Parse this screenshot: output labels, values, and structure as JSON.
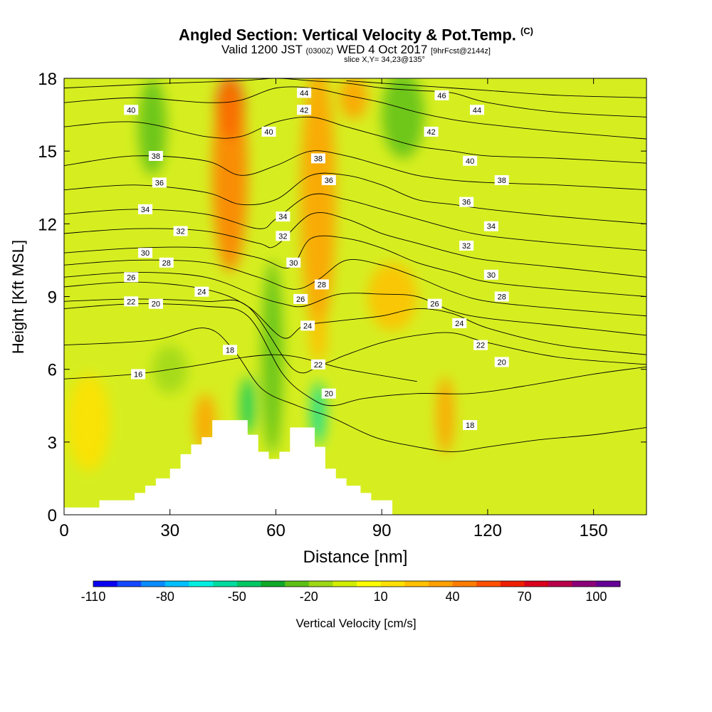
{
  "header": {
    "title": "Angled Section: Vertical Velocity & Pot.Temp.",
    "title_mark": "(C)",
    "subtitle_pre": "Valid 1200 JST",
    "subtitle_z": "(0300Z)",
    "subtitle_date": "WED 4 Oct 2017",
    "subtitle_fcst": "[9hrFcst@2144z]",
    "slice": "slice X,Y= 34,23@135°"
  },
  "chart_data": {
    "type": "heatmap",
    "title": "Angled Section: Vertical Velocity & Pot.Temp.",
    "xlabel": "Distance [nm]",
    "ylabel": "Height [Kft MSL]",
    "xlim": [
      0,
      165
    ],
    "ylim": [
      0,
      18
    ],
    "x_ticks": [
      0,
      30,
      60,
      90,
      120,
      150
    ],
    "y_ticks": [
      0,
      3,
      6,
      9,
      12,
      15,
      18
    ],
    "colorbar": {
      "label": "Vertical Velocity [cm/s]",
      "range": [
        -110,
        110
      ],
      "ticks": [
        -110,
        -80,
        -50,
        -20,
        10,
        40,
        70,
        100
      ],
      "colors": [
        "#0a00f0",
        "#1448ff",
        "#0a8cff",
        "#00c0ff",
        "#00f0e0",
        "#00dca0",
        "#00c864",
        "#10a828",
        "#5cc014",
        "#9ed814",
        "#d2ee00",
        "#ffff00",
        "#ffe000",
        "#ffc000",
        "#ffa000",
        "#ff7c00",
        "#ff5000",
        "#f01e00",
        "#d8001e",
        "#b8004a",
        "#8c0078",
        "#640096"
      ]
    },
    "terrain": [
      [
        0,
        0.3
      ],
      [
        10,
        0.3
      ],
      [
        10,
        0.6
      ],
      [
        20,
        0.6
      ],
      [
        20,
        0.9
      ],
      [
        23,
        0.9
      ],
      [
        23,
        1.2
      ],
      [
        26,
        1.2
      ],
      [
        26,
        1.5
      ],
      [
        30,
        1.5
      ],
      [
        30,
        1.9
      ],
      [
        33,
        1.9
      ],
      [
        33,
        2.5
      ],
      [
        36,
        2.5
      ],
      [
        36,
        2.9
      ],
      [
        39,
        2.9
      ],
      [
        39,
        3.2
      ],
      [
        42,
        3.2
      ],
      [
        42,
        3.9
      ],
      [
        52,
        3.9
      ],
      [
        52,
        3.3
      ],
      [
        55,
        3.3
      ],
      [
        55,
        2.6
      ],
      [
        58,
        2.6
      ],
      [
        58,
        2.3
      ],
      [
        61,
        2.3
      ],
      [
        61,
        2.6
      ],
      [
        64,
        2.6
      ],
      [
        64,
        3.6
      ],
      [
        71,
        3.6
      ],
      [
        71,
        2.8
      ],
      [
        74,
        2.8
      ],
      [
        74,
        1.9
      ],
      [
        77,
        1.9
      ],
      [
        77,
        1.5
      ],
      [
        80,
        1.5
      ],
      [
        80,
        1.2
      ],
      [
        84,
        1.2
      ],
      [
        84,
        0.9
      ],
      [
        87,
        0.9
      ],
      [
        87,
        0.6
      ],
      [
        93,
        0.6
      ],
      [
        93,
        0
      ]
    ],
    "velocity_cells": [
      {
        "cx": 47,
        "cy": 16.8,
        "rx": 4,
        "ry": 1.3,
        "v": 75
      },
      {
        "cx": 47,
        "cy": 14,
        "rx": 5,
        "ry": 4,
        "v": 45
      },
      {
        "cx": 72,
        "cy": 13,
        "rx": 5,
        "ry": 5.5,
        "v": 40
      },
      {
        "cx": 82,
        "cy": 17.2,
        "rx": 4,
        "ry": 0.9,
        "v": 40
      },
      {
        "cx": 93,
        "cy": 9,
        "rx": 7,
        "ry": 1.4,
        "v": 25
      },
      {
        "cx": 108,
        "cy": 4.1,
        "rx": 2.5,
        "ry": 1.6,
        "v": 35
      },
      {
        "cx": 72,
        "cy": 7.3,
        "rx": 2.5,
        "ry": 1,
        "v": 25
      },
      {
        "cx": 7,
        "cy": 3.8,
        "rx": 6,
        "ry": 2,
        "v": 15
      },
      {
        "cx": 40,
        "cy": 3.8,
        "rx": 3,
        "ry": 1.2,
        "v": 30
      },
      {
        "cx": 25,
        "cy": 16,
        "rx": 4,
        "ry": 2,
        "v": -30
      },
      {
        "cx": 96,
        "cy": 16.5,
        "rx": 6,
        "ry": 1.8,
        "v": -30
      },
      {
        "cx": 59,
        "cy": 6.5,
        "rx": 3,
        "ry": 4,
        "v": -25
      },
      {
        "cx": 52,
        "cy": 4.5,
        "rx": 2,
        "ry": 1.2,
        "v": -45
      },
      {
        "cx": 72,
        "cy": 4.2,
        "rx": 2,
        "ry": 1.3,
        "v": -55
      },
      {
        "cx": 30,
        "cy": 6,
        "rx": 5,
        "ry": 1,
        "v": -15
      }
    ],
    "series": [
      {
        "name": "16",
        "x": [
          0,
          20,
          35,
          60,
          80,
          100
        ],
        "y": [
          5.6,
          5.8,
          6.1,
          6.6,
          6.0,
          5.5
        ]
      },
      {
        "name": "18",
        "x": [
          0,
          25,
          40,
          48,
          56,
          66,
          76,
          88,
          100,
          110,
          120,
          135,
          150,
          165
        ],
        "y": [
          7.0,
          7.2,
          7.7,
          6.8,
          5.2,
          4.5,
          4.0,
          3.2,
          2.8,
          2.6,
          2.8,
          3.1,
          3.3,
          3.6
        ]
      },
      {
        "name": "20",
        "x": [
          0,
          20,
          40,
          52,
          62,
          70,
          76,
          85,
          100,
          115,
          130,
          150,
          165
        ],
        "y": [
          8.5,
          8.7,
          8.6,
          8.2,
          5.8,
          4.8,
          4.5,
          4.8,
          5.0,
          5.0,
          5.3,
          5.8,
          6.1
        ]
      },
      {
        "name": "22",
        "x": [
          0,
          20,
          40,
          52,
          65,
          73,
          80,
          90,
          100,
          110,
          120,
          140,
          165
        ],
        "y": [
          8.8,
          8.9,
          8.8,
          8.6,
          6.0,
          6.2,
          6.6,
          7.1,
          7.4,
          7.5,
          7.1,
          6.5,
          6.2
        ]
      },
      {
        "name": "24",
        "x": [
          0,
          20,
          40,
          52,
          62,
          68,
          78,
          90,
          100,
          110,
          120,
          140,
          165
        ],
        "y": [
          9.4,
          9.6,
          9.3,
          8.6,
          7.3,
          7.8,
          8.0,
          8.2,
          8.5,
          8.3,
          7.7,
          7.0,
          6.6
        ]
      },
      {
        "name": "26",
        "x": [
          0,
          20,
          40,
          55,
          62,
          68,
          78,
          90,
          100,
          110,
          120,
          140,
          165
        ],
        "y": [
          9.8,
          10.0,
          9.8,
          9.0,
          8.7,
          8.6,
          9.1,
          9.1,
          9.0,
          8.4,
          8.1,
          7.8,
          7.4
        ]
      },
      {
        "name": "28",
        "x": [
          0,
          20,
          40,
          55,
          65,
          72,
          80,
          90,
          100,
          110,
          120,
          140,
          165
        ],
        "y": [
          10.3,
          10.5,
          10.4,
          9.8,
          9.3,
          9.7,
          10.5,
          10.3,
          9.8,
          9.2,
          8.8,
          8.5,
          8.2
        ]
      },
      {
        "name": "30",
        "x": [
          0,
          20,
          40,
          55,
          64,
          70,
          80,
          90,
          100,
          110,
          120,
          140,
          165
        ],
        "y": [
          10.8,
          11.0,
          11.0,
          10.6,
          10.2,
          11.4,
          11.4,
          11.0,
          10.4,
          10.0,
          9.6,
          9.3,
          9.0
        ]
      },
      {
        "name": "32",
        "x": [
          0,
          20,
          40,
          55,
          60,
          70,
          80,
          90,
          100,
          110,
          120,
          140,
          165
        ],
        "y": [
          11.6,
          11.8,
          11.7,
          11.2,
          11.1,
          12.4,
          12.2,
          11.6,
          11.2,
          10.8,
          10.5,
          10.2,
          9.8
        ]
      },
      {
        "name": "34",
        "x": [
          0,
          20,
          40,
          55,
          60,
          70,
          80,
          90,
          100,
          110,
          120,
          140,
          165
        ],
        "y": [
          12.4,
          12.6,
          12.4,
          11.8,
          12.2,
          13.2,
          13.0,
          12.6,
          12.2,
          11.8,
          11.5,
          11.2,
          10.9
        ]
      },
      {
        "name": "36",
        "x": [
          0,
          20,
          40,
          50,
          60,
          70,
          80,
          90,
          100,
          110,
          120,
          140,
          165
        ],
        "y": [
          13.4,
          13.6,
          13.3,
          12.8,
          13.0,
          14.0,
          14.0,
          13.6,
          13.0,
          12.8,
          12.6,
          12.3,
          12.0
        ]
      },
      {
        "name": "38",
        "x": [
          0,
          20,
          40,
          50,
          60,
          70,
          80,
          90,
          100,
          110,
          120,
          140,
          165
        ],
        "y": [
          14.4,
          14.8,
          14.6,
          14.0,
          14.4,
          15.0,
          14.8,
          14.4,
          14.0,
          13.8,
          13.7,
          13.6,
          13.4
        ]
      },
      {
        "name": "40",
        "x": [
          0,
          20,
          40,
          50,
          60,
          70,
          80,
          90,
          100,
          110,
          120,
          140,
          165
        ],
        "y": [
          16.0,
          16.2,
          15.6,
          15.6,
          16.2,
          16.4,
          16.0,
          15.6,
          15.2,
          15.0,
          14.8,
          14.7,
          14.5
        ]
      },
      {
        "name": "42",
        "x": [
          0,
          20,
          40,
          50,
          60,
          70,
          80,
          90,
          100,
          110,
          120,
          140,
          165
        ],
        "y": [
          17.0,
          17.2,
          17.0,
          17.1,
          17.6,
          17.6,
          17.3,
          17.0,
          16.6,
          16.3,
          16.1,
          15.8,
          15.5
        ]
      },
      {
        "name": "44",
        "x": [
          0,
          30,
          50,
          60,
          70,
          80,
          90,
          100,
          110,
          120,
          140,
          165
        ],
        "y": [
          17.6,
          17.8,
          17.9,
          18.0,
          17.9,
          17.8,
          17.6,
          17.5,
          17.4,
          17.0,
          16.6,
          16.4
        ]
      },
      {
        "name": "46",
        "x": [
          80,
          100,
          110,
          120,
          140,
          165
        ],
        "y": [
          17.9,
          17.7,
          17.6,
          17.5,
          17.3,
          17.2
        ]
      }
    ],
    "contour_labels": [
      {
        "text": "44",
        "x": 68,
        "y": 17.4
      },
      {
        "text": "46",
        "x": 107,
        "y": 17.3
      },
      {
        "text": "40",
        "x": 19,
        "y": 16.7
      },
      {
        "text": "42",
        "x": 68,
        "y": 16.7
      },
      {
        "text": "44",
        "x": 117,
        "y": 16.7
      },
      {
        "text": "40",
        "x": 58,
        "y": 15.8
      },
      {
        "text": "42",
        "x": 104,
        "y": 15.8
      },
      {
        "text": "38",
        "x": 26,
        "y": 14.8
      },
      {
        "text": "38",
        "x": 72,
        "y": 14.7
      },
      {
        "text": "40",
        "x": 115,
        "y": 14.6
      },
      {
        "text": "36",
        "x": 27,
        "y": 13.7
      },
      {
        "text": "36",
        "x": 75,
        "y": 13.8
      },
      {
        "text": "38",
        "x": 124,
        "y": 13.8
      },
      {
        "text": "34",
        "x": 23,
        "y": 12.6
      },
      {
        "text": "36",
        "x": 114,
        "y": 12.9
      },
      {
        "text": "34",
        "x": 62,
        "y": 12.3
      },
      {
        "text": "34",
        "x": 121,
        "y": 11.9
      },
      {
        "text": "32",
        "x": 33,
        "y": 11.7
      },
      {
        "text": "32",
        "x": 62,
        "y": 11.5
      },
      {
        "text": "32",
        "x": 114,
        "y": 11.1
      },
      {
        "text": "30",
        "x": 23,
        "y": 10.8
      },
      {
        "text": "28",
        "x": 29,
        "y": 10.4
      },
      {
        "text": "30",
        "x": 65,
        "y": 10.4
      },
      {
        "text": "30",
        "x": 121,
        "y": 9.9
      },
      {
        "text": "26",
        "x": 19,
        "y": 9.8
      },
      {
        "text": "28",
        "x": 73,
        "y": 9.5
      },
      {
        "text": "24",
        "x": 39,
        "y": 9.2
      },
      {
        "text": "28",
        "x": 124,
        "y": 9.0
      },
      {
        "text": "22",
        "x": 19,
        "y": 8.8
      },
      {
        "text": "20",
        "x": 26,
        "y": 8.7
      },
      {
        "text": "26",
        "x": 67,
        "y": 8.9
      },
      {
        "text": "26",
        "x": 105,
        "y": 8.7
      },
      {
        "text": "24",
        "x": 69,
        "y": 7.8
      },
      {
        "text": "24",
        "x": 112,
        "y": 7.9
      },
      {
        "text": "22",
        "x": 118,
        "y": 7.0
      },
      {
        "text": "18",
        "x": 47,
        "y": 6.8
      },
      {
        "text": "22",
        "x": 72,
        "y": 6.2
      },
      {
        "text": "20",
        "x": 124,
        "y": 6.3
      },
      {
        "text": "16",
        "x": 21,
        "y": 5.8
      },
      {
        "text": "20",
        "x": 75,
        "y": 5.0
      },
      {
        "text": "18",
        "x": 115,
        "y": 3.7
      }
    ]
  }
}
